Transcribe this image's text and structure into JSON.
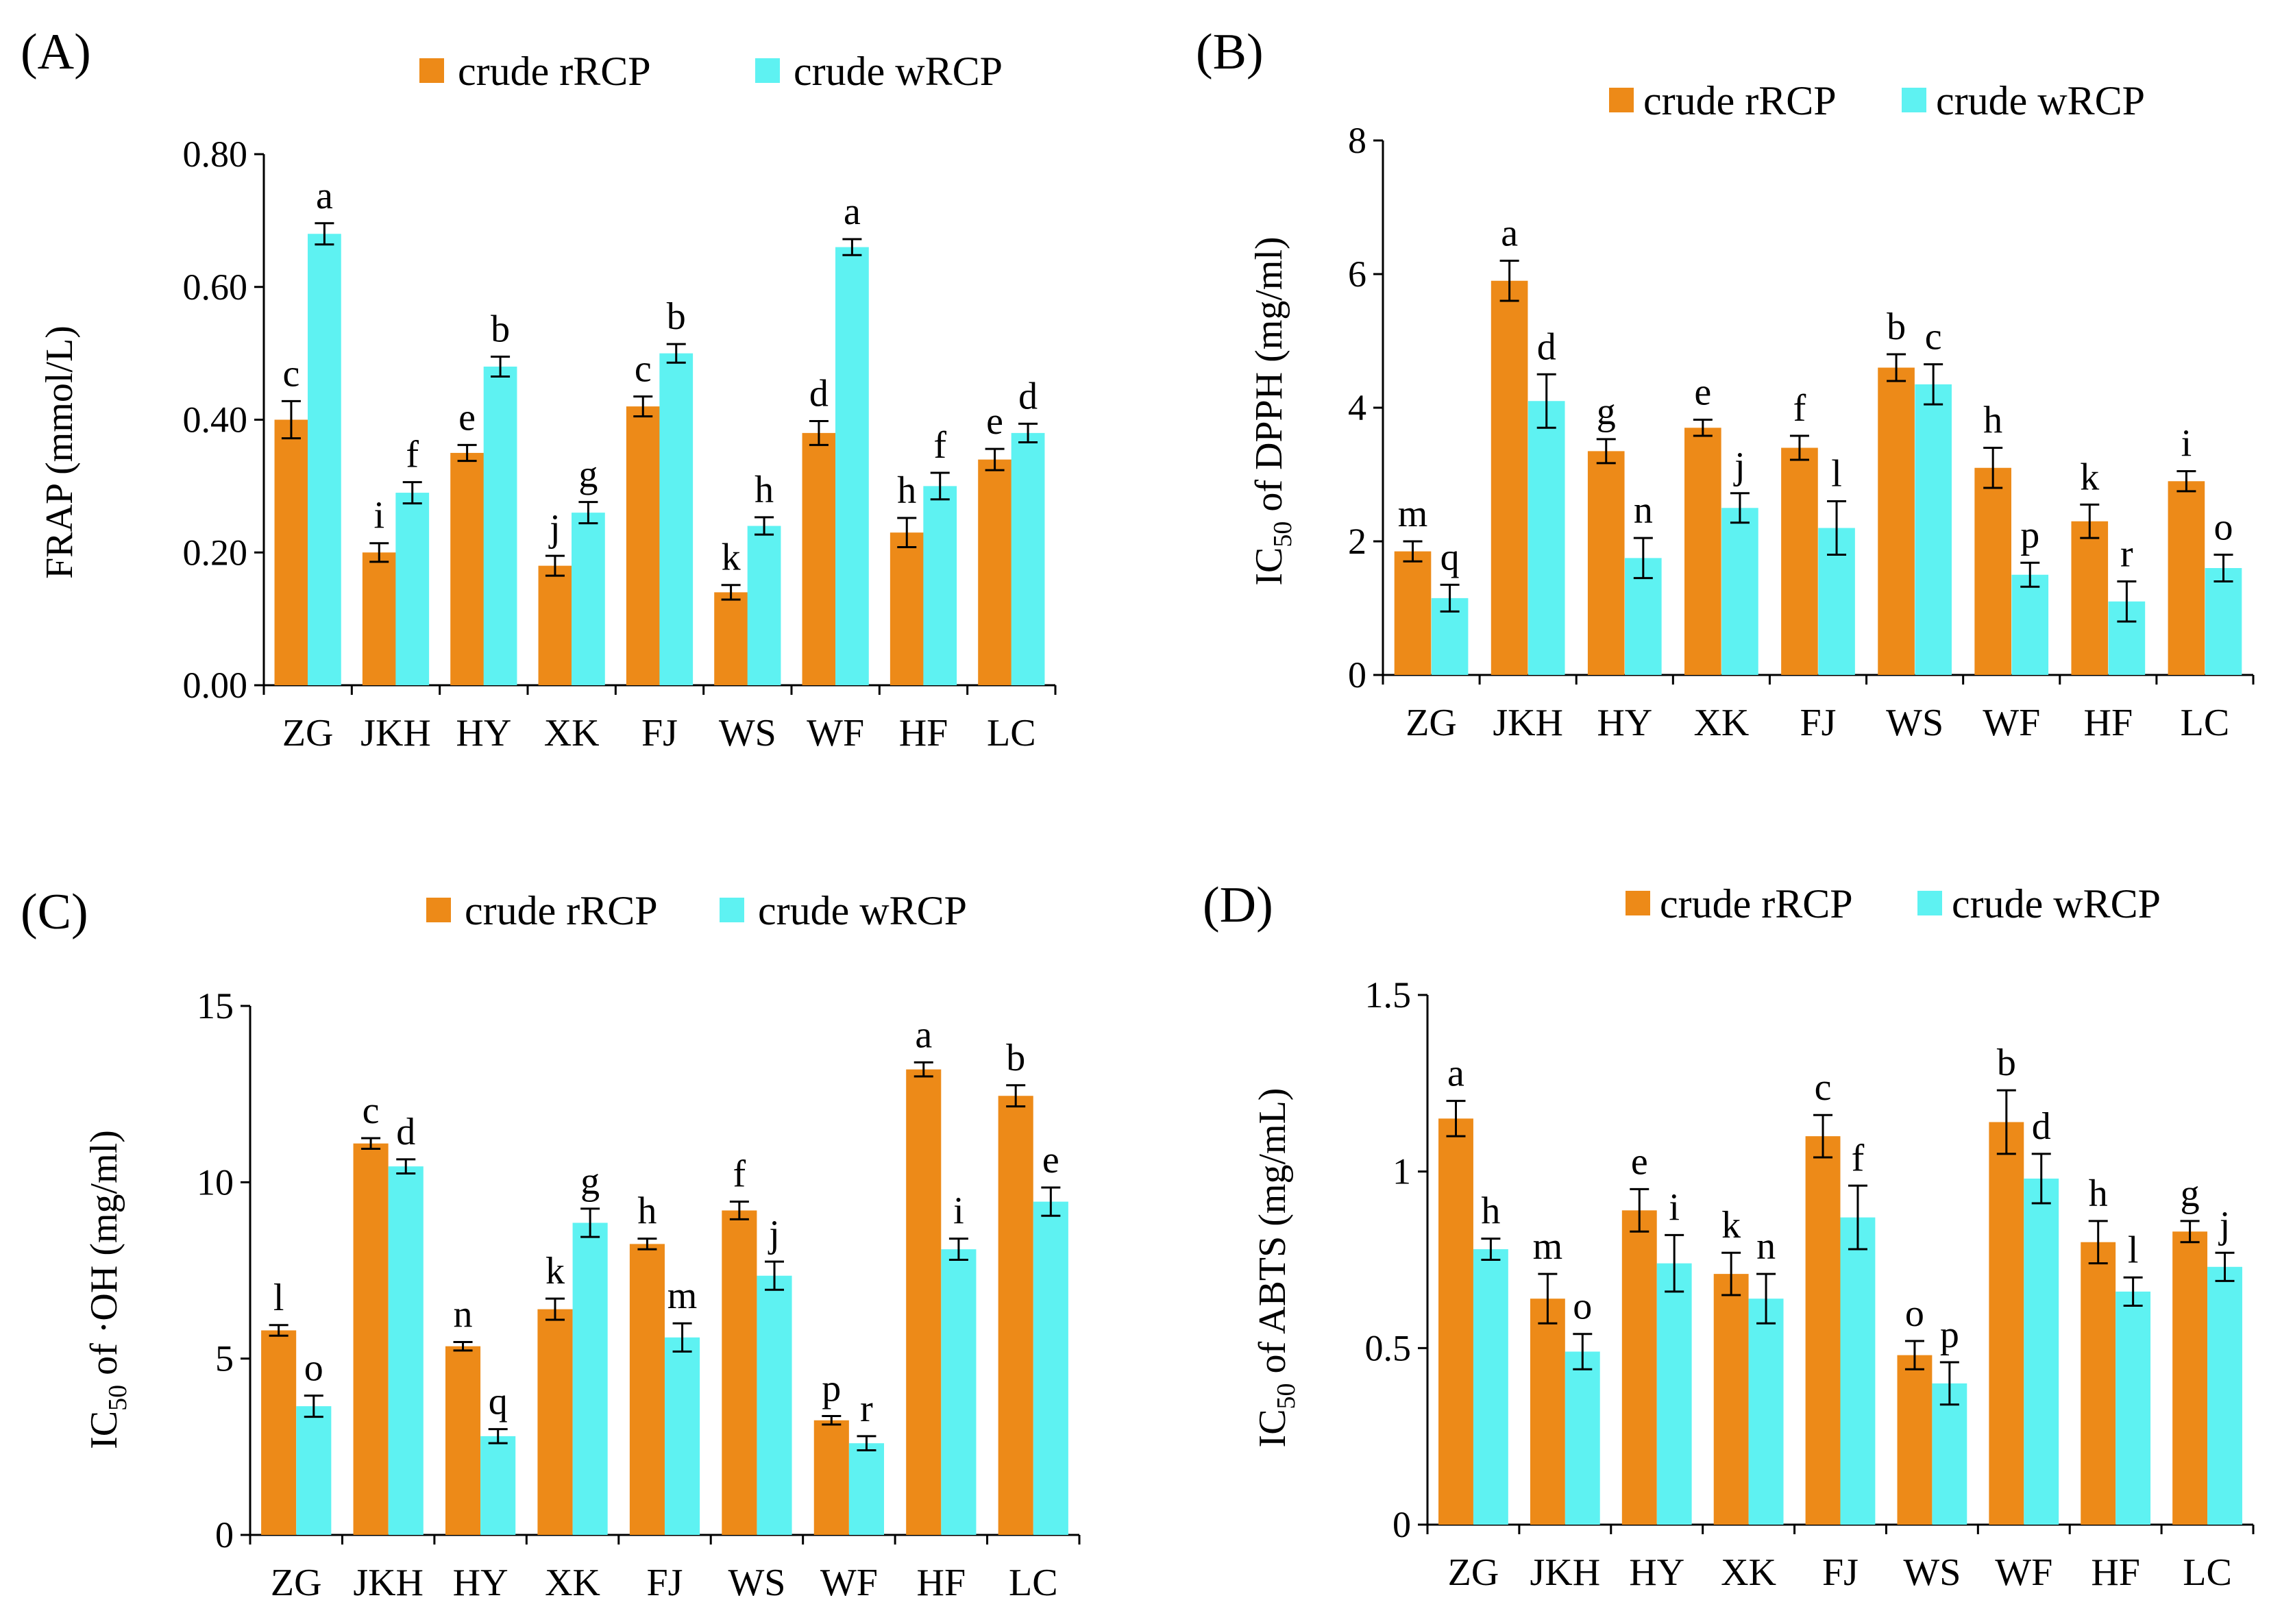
{
  "colors": {
    "crude_rRCP": "#ED8A18",
    "crude_wRCP": "#5EF2F2"
  },
  "chart_data": [
    {
      "panel": "(A)",
      "type": "bar",
      "ylabel": "FRAP (mmol/L)",
      "ylabel_prefix": "",
      "ylabel_sub": "",
      "ylabel_suffix": "",
      "ylim": [
        0,
        0.8
      ],
      "yticks": [
        "0.00",
        "0.20",
        "0.40",
        "0.60",
        "0.80"
      ],
      "ytick_values": [
        0,
        0.2,
        0.4,
        0.6,
        0.8
      ],
      "categories": [
        "ZG",
        "JKH",
        "HY",
        "XK",
        "FJ",
        "WS",
        "WF",
        "HF",
        "LC"
      ],
      "legend": [
        "crude rRCP",
        "crude wRCP"
      ],
      "series": [
        {
          "name": "crude rRCP",
          "values": [
            0.4,
            0.2,
            0.35,
            0.18,
            0.42,
            0.14,
            0.38,
            0.23,
            0.34
          ],
          "errors": [
            0.028,
            0.014,
            0.012,
            0.015,
            0.015,
            0.011,
            0.018,
            0.022,
            0.016
          ],
          "letters": [
            "c",
            "i",
            "e",
            "j",
            "c",
            "k",
            "d",
            "h",
            "e"
          ]
        },
        {
          "name": "crude wRCP",
          "values": [
            0.68,
            0.29,
            0.48,
            0.26,
            0.5,
            0.24,
            0.66,
            0.3,
            0.38
          ],
          "errors": [
            0.016,
            0.016,
            0.015,
            0.016,
            0.014,
            0.013,
            0.012,
            0.02,
            0.014
          ],
          "letters": [
            "a",
            "f",
            "b",
            "g",
            "b",
            "h",
            "a",
            "f",
            "d"
          ]
        }
      ]
    },
    {
      "panel": "(B)",
      "type": "bar",
      "ylabel": "IC50 of DPPH (mg/ml)",
      "ylabel_prefix": "IC",
      "ylabel_sub": "50",
      "ylabel_suffix": "  of DPPH (mg/ml)",
      "ylim": [
        0,
        8
      ],
      "yticks": [
        "0",
        "2",
        "4",
        "6",
        "8"
      ],
      "ytick_values": [
        0,
        2,
        4,
        6,
        8
      ],
      "categories": [
        "ZG",
        "JKH",
        "HY",
        "XK",
        "FJ",
        "WS",
        "WF",
        "HF",
        "LC"
      ],
      "legend": [
        "crude rRCP",
        "crude wRCP"
      ],
      "series": [
        {
          "name": "crude rRCP",
          "values": [
            1.85,
            5.9,
            3.35,
            3.7,
            3.4,
            4.6,
            3.1,
            2.3,
            2.9
          ],
          "errors": [
            0.15,
            0.3,
            0.18,
            0.12,
            0.18,
            0.2,
            0.3,
            0.25,
            0.15
          ],
          "letters": [
            "m",
            "a",
            "g",
            "e",
            "f",
            "b",
            "h",
            "k",
            "i"
          ]
        },
        {
          "name": "crude wRCP",
          "values": [
            1.15,
            4.1,
            1.75,
            2.5,
            2.2,
            4.35,
            1.5,
            1.1,
            1.6
          ],
          "errors": [
            0.2,
            0.4,
            0.3,
            0.22,
            0.4,
            0.3,
            0.18,
            0.3,
            0.2
          ],
          "letters": [
            "q",
            "d",
            "n",
            "j",
            "l",
            "c",
            "p",
            "r",
            "o"
          ]
        }
      ]
    },
    {
      "panel": "(C)",
      "type": "bar",
      "ylabel": "IC50 of ·OH (mg/ml)",
      "ylabel_prefix": "IC",
      "ylabel_sub": "50",
      "ylabel_suffix": "  of ·OH (mg/ml)",
      "ylim": [
        0,
        15
      ],
      "yticks": [
        "0",
        "5",
        "10",
        "15"
      ],
      "ytick_values": [
        0,
        5,
        10,
        15
      ],
      "categories": [
        "ZG",
        "JKH",
        "HY",
        "XK",
        "FJ",
        "WS",
        "WF",
        "HF",
        "LC"
      ],
      "legend": [
        "crude rRCP",
        "crude wRCP"
      ],
      "series": [
        {
          "name": "crude rRCP",
          "values": [
            5.8,
            11.1,
            5.35,
            6.4,
            8.25,
            9.2,
            3.25,
            13.2,
            12.45
          ],
          "errors": [
            0.15,
            0.15,
            0.12,
            0.3,
            0.15,
            0.25,
            0.12,
            0.2,
            0.3
          ],
          "letters": [
            "l",
            "c",
            "n",
            "k",
            "h",
            "f",
            "p",
            "a",
            "b"
          ]
        },
        {
          "name": "crude wRCP",
          "values": [
            3.65,
            10.45,
            2.8,
            8.85,
            5.6,
            7.35,
            2.6,
            8.1,
            9.45
          ],
          "errors": [
            0.3,
            0.2,
            0.2,
            0.4,
            0.4,
            0.4,
            0.2,
            0.3,
            0.4
          ],
          "letters": [
            "o",
            "d",
            "q",
            "g",
            "m",
            "j",
            "r",
            "i",
            "e"
          ]
        }
      ]
    },
    {
      "panel": "(D)",
      "type": "bar",
      "ylabel": "IC50 of ABTS (mg/mL)",
      "ylabel_prefix": "IC",
      "ylabel_sub": "50",
      "ylabel_suffix": "  of ABTS (mg/mL)",
      "ylim": [
        0,
        1.5
      ],
      "yticks": [
        "0",
        "0.5",
        "1",
        "1.5"
      ],
      "ytick_values": [
        0,
        0.5,
        1,
        1.5
      ],
      "categories": [
        "ZG",
        "JKH",
        "HY",
        "XK",
        "FJ",
        "WS",
        "WF",
        "HF",
        "LC"
      ],
      "legend": [
        "crude rRCP",
        "crude wRCP"
      ],
      "series": [
        {
          "name": "crude rRCP",
          "values": [
            1.15,
            0.64,
            0.89,
            0.71,
            1.1,
            0.48,
            1.14,
            0.8,
            0.83
          ],
          "errors": [
            0.05,
            0.07,
            0.06,
            0.06,
            0.06,
            0.04,
            0.09,
            0.06,
            0.03
          ],
          "letters": [
            "a",
            "m",
            "e",
            "k",
            "c",
            "o",
            "b",
            "h",
            "g"
          ]
        },
        {
          "name": "crude wRCP",
          "values": [
            0.78,
            0.49,
            0.74,
            0.64,
            0.87,
            0.4,
            0.98,
            0.66,
            0.73
          ],
          "errors": [
            0.03,
            0.05,
            0.08,
            0.07,
            0.09,
            0.06,
            0.07,
            0.04,
            0.04
          ],
          "letters": [
            "h",
            "o",
            "i",
            "n",
            "f",
            "p",
            "d",
            "l",
            "j"
          ]
        }
      ]
    }
  ]
}
